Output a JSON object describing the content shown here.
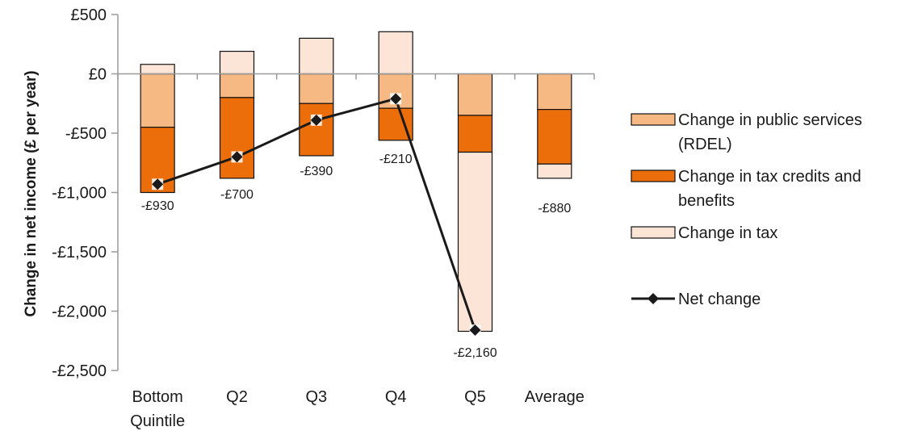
{
  "chart_data": {
    "type": "bar",
    "stacked": true,
    "categories": [
      [
        "Bottom",
        "Quintile"
      ],
      [
        "Q2"
      ],
      [
        "Q3"
      ],
      [
        "Q4"
      ],
      [
        "Q5"
      ],
      [
        "Average"
      ]
    ],
    "ylabel": "Change in net income (£ per year)",
    "ylim": [
      -2500,
      500
    ],
    "yticks": [
      500,
      0,
      -500,
      -1000,
      -1500,
      -2000,
      -2500
    ],
    "ytick_labels": [
      "£500",
      "£0",
      "-£500",
      "-£1,000",
      "-£1,500",
      "-£2,000",
      "-£2,500"
    ],
    "series": [
      {
        "name": [
          "Change in public services",
          "(RDEL)"
        ],
        "color": "#f7b984",
        "values": [
          -450,
          -200,
          -250,
          -290,
          -350,
          -300
        ]
      },
      {
        "name": [
          "Change in tax credits and",
          "benefits"
        ],
        "color": "#ec6e0b",
        "values": [
          -550,
          -680,
          -440,
          -270,
          -310,
          -460
        ]
      },
      {
        "name": [
          "Change in tax"
        ],
        "color": "#fce5d6",
        "values": [
          80,
          190,
          300,
          355,
          -1510,
          -120
        ]
      }
    ],
    "line_series": {
      "name": [
        "Net change"
      ],
      "color": "#1a1a1a",
      "values": [
        -930,
        -700,
        -390,
        -210,
        -2160,
        null
      ]
    },
    "data_labels": [
      "-£930",
      "-£700",
      "-£390",
      "-£210",
      "-£2,160",
      "-£880"
    ]
  }
}
